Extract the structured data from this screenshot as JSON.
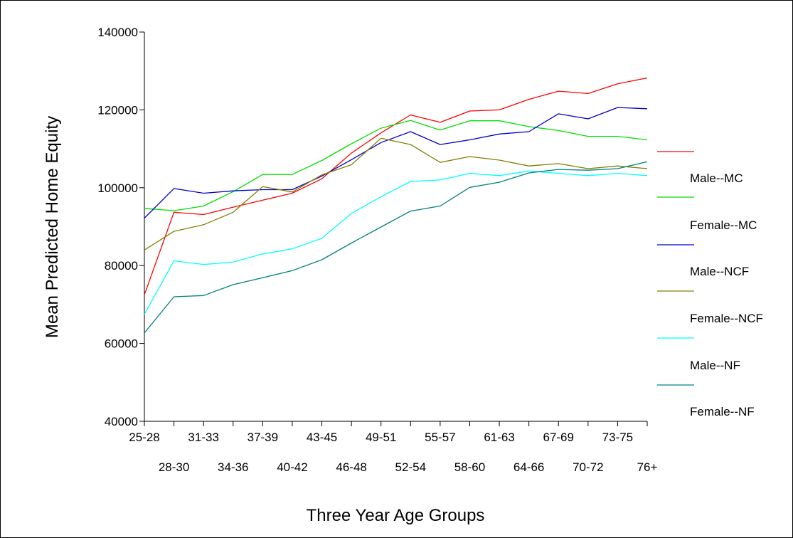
{
  "chart_data": {
    "type": "line",
    "title": "",
    "xlabel": "Three Year Age Groups",
    "ylabel": "Mean Predicted Home Equity",
    "ylim": [
      40000,
      140000
    ],
    "yticks": [
      40000,
      60000,
      80000,
      100000,
      120000,
      140000
    ],
    "ytick_labels": [
      "40000",
      "60000",
      "80000",
      "100000",
      "120000",
      "140000"
    ],
    "grid": false,
    "legend_position": "right",
    "categories": [
      "25-28",
      "28-30",
      "31-33",
      "34-36",
      "37-39",
      "40-42",
      "43-45",
      "46-48",
      "49-51",
      "52-54",
      "55-57",
      "58-60",
      "61-63",
      "64-66",
      "67-69",
      "70-72",
      "73-75",
      "76+"
    ],
    "legend_labels": [
      "",
      "Male--MC",
      "Female--MC",
      "Male--NCF",
      "Female--NCF",
      "Male--NF",
      "Female--NF"
    ],
    "series": [
      {
        "color": "#ff0000",
        "values": [
          72500,
          93700,
          93100,
          95000,
          96800,
          98600,
          102300,
          108900,
          114100,
          118700,
          116800,
          119700,
          120000,
          122700,
          124800,
          124200,
          126700,
          128200
        ]
      },
      {
        "color": "#00e000",
        "values": [
          94700,
          94100,
          95300,
          99000,
          103400,
          103400,
          107000,
          111300,
          115300,
          117300,
          114800,
          117200,
          117200,
          115700,
          114700,
          113200,
          113200,
          112300
        ]
      },
      {
        "color": "#0000cc",
        "values": [
          92200,
          99800,
          98600,
          99200,
          99500,
          99500,
          103000,
          107200,
          111600,
          114400,
          111100,
          112300,
          113800,
          114400,
          119000,
          117700,
          120600,
          120300
        ]
      },
      {
        "color": "#808000",
        "values": [
          84000,
          88800,
          90500,
          93700,
          100300,
          98900,
          103300,
          105900,
          112700,
          111100,
          106500,
          108000,
          107100,
          105600,
          106200,
          104900,
          105600,
          104900
        ]
      },
      {
        "color": "#00ffff",
        "values": [
          67500,
          81200,
          80300,
          80900,
          83000,
          84300,
          87000,
          93400,
          97700,
          101600,
          102000,
          103700,
          103100,
          104300,
          103700,
          103100,
          103700,
          103100
        ]
      },
      {
        "color": "#008080",
        "values": [
          62700,
          72000,
          72300,
          75100,
          76900,
          78700,
          81500,
          85800,
          89900,
          94000,
          95300,
          100100,
          101400,
          103800,
          104700,
          104500,
          104900,
          106700
        ]
      }
    ]
  }
}
